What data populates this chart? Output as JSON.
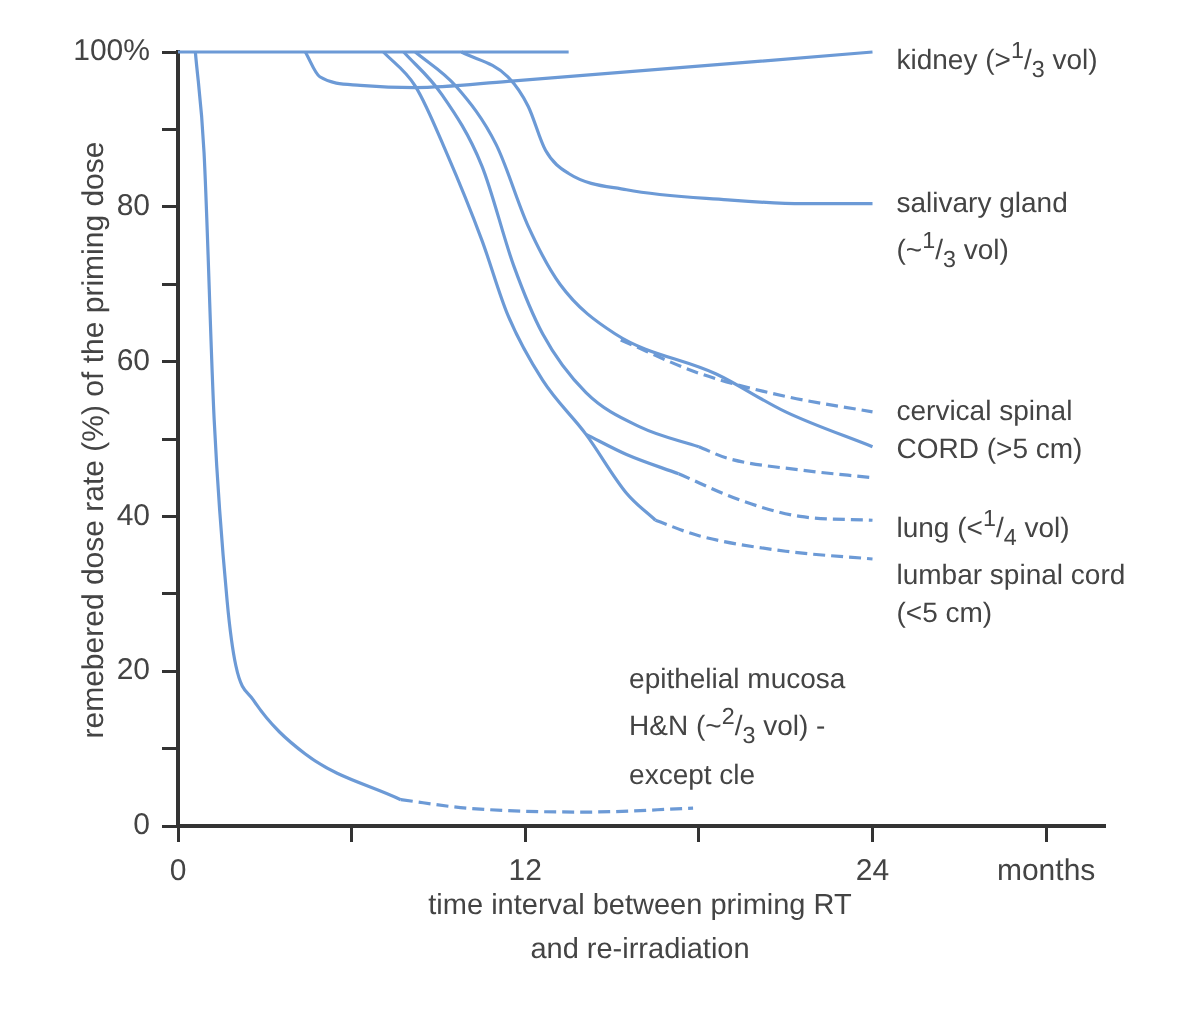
{
  "chart_data": {
    "type": "line",
    "xlabel": "time interval between priming RT and re-irradiation",
    "ylabel": "remebered dose rate (%) of the priming dose",
    "xlim": [
      0,
      32
    ],
    "xticks": [
      0,
      {
        "value": 6,
        "label": null
      },
      12,
      {
        "value": 18,
        "label": null
      },
      24,
      {
        "value": 30,
        "label": "months"
      }
    ],
    "ylim": [
      0,
      100
    ],
    "yticks": [
      0,
      {
        "value": 10,
        "label": null
      },
      20,
      {
        "value": 30,
        "label": null
      },
      40,
      {
        "value": 50,
        "label": null
      },
      60,
      {
        "value": 70,
        "label": null
      },
      80,
      {
        "value": 90,
        "label": null
      },
      {
        "value": 100,
        "label": "100%"
      }
    ],
    "grid": false,
    "legend": false,
    "marker": "none",
    "series": [
      {
        "color": "#6c9ad6",
        "line_style": "solid",
        "x": [
          0,
          13.5
        ],
        "values": [
          100,
          100
        ]
      },
      {
        "name": "kidney (>$^{1}$/$_{3}$ vol)",
        "color": "#6c9ad6",
        "line_style": "solid",
        "x": [
          4.4,
          4.9,
          6.3,
          8.2,
          11.4,
          24
        ],
        "values": [
          100,
          96.8,
          95.7,
          95.4,
          96.2,
          100
        ]
      },
      {
        "name": "salivary gland (~$^{1}$/$_{3}$ vol)",
        "color": "#6c9ad6",
        "line_style": "solid",
        "x": [
          9.8,
          11.4,
          12.1,
          12.7,
          13.5,
          15.5,
          19,
          21.6,
          24
        ],
        "values": [
          100,
          96.8,
          93,
          87.3,
          84.3,
          82.2,
          80.9,
          80.4,
          80.4
        ]
      },
      {
        "color": "#6c9ad6",
        "line_style": "solid",
        "x": [
          8.2,
          9.6,
          11,
          12.1,
          13.2,
          15.1,
          18.6,
          21,
          24
        ],
        "values": [
          100,
          95.6,
          88,
          77.5,
          70,
          63.6,
          58.4,
          53.5,
          49
        ]
      },
      {
        "name": "cervical spinal CORD (>5 cm)",
        "color": "#6c9ad6",
        "line_style": "dashed",
        "x": [
          15.3,
          18,
          21,
          24
        ],
        "values": [
          62.8,
          58.5,
          55.5,
          53.5
        ]
      },
      {
        "color": "#6c9ad6",
        "line_style": "solid",
        "x": [
          7.8,
          9.1,
          10.5,
          11.6,
          12.6,
          14.1,
          16,
          18
        ],
        "values": [
          100,
          94.6,
          85.3,
          72.4,
          63.6,
          56,
          51.5,
          49
        ]
      },
      {
        "color": "#6c9ad6",
        "line_style": "dashed",
        "x": [
          18,
          19,
          21.5,
          24
        ],
        "values": [
          49,
          47.5,
          46,
          45
        ]
      },
      {
        "color": "#6c9ad6",
        "line_style": "solid",
        "x": [
          14.1,
          15.5,
          17.3
        ],
        "values": [
          50.6,
          48,
          45.5
        ]
      },
      {
        "name": "lung (<$^{1}$/$_{4}$ vol)",
        "color": "#6c9ad6",
        "line_style": "dashed",
        "x": [
          17.3,
          19.5,
          21.5,
          24
        ],
        "values": [
          45.5,
          42,
          40,
          39.5
        ]
      },
      {
        "color": "#6c9ad6",
        "line_style": "solid",
        "x": [
          7.1,
          8.2,
          9.3,
          10.5,
          11.4,
          12.6,
          14.1,
          15.5,
          16.5
        ],
        "values": [
          100,
          95.6,
          86.8,
          75.7,
          66,
          57.6,
          50.6,
          43,
          39.5
        ]
      },
      {
        "name": "lumbar spinal cord (<5 cm)",
        "color": "#6c9ad6",
        "line_style": "dashed",
        "x": [
          16.5,
          18,
          21,
          24
        ],
        "values": [
          39.5,
          37.5,
          35.5,
          34.5
        ]
      },
      {
        "color": "#6c9ad6",
        "line_style": "solid",
        "x": [
          0.6,
          0.9,
          1.25,
          1.7,
          2,
          2.6,
          4.4,
          7.7
        ],
        "values": [
          100,
          87,
          52.5,
          29,
          20.7,
          16.3,
          9.3,
          3.4
        ]
      },
      {
        "name": "epithelial mucosa H&N (~$^{2}$/$_{3}$ vol) - except cle",
        "color": "#6c9ad6",
        "line_style": "dashed",
        "x": [
          7.7,
          10,
          14.1,
          17.8
        ],
        "values": [
          3.4,
          2.3,
          1.8,
          2.3
        ]
      }
    ]
  }
}
